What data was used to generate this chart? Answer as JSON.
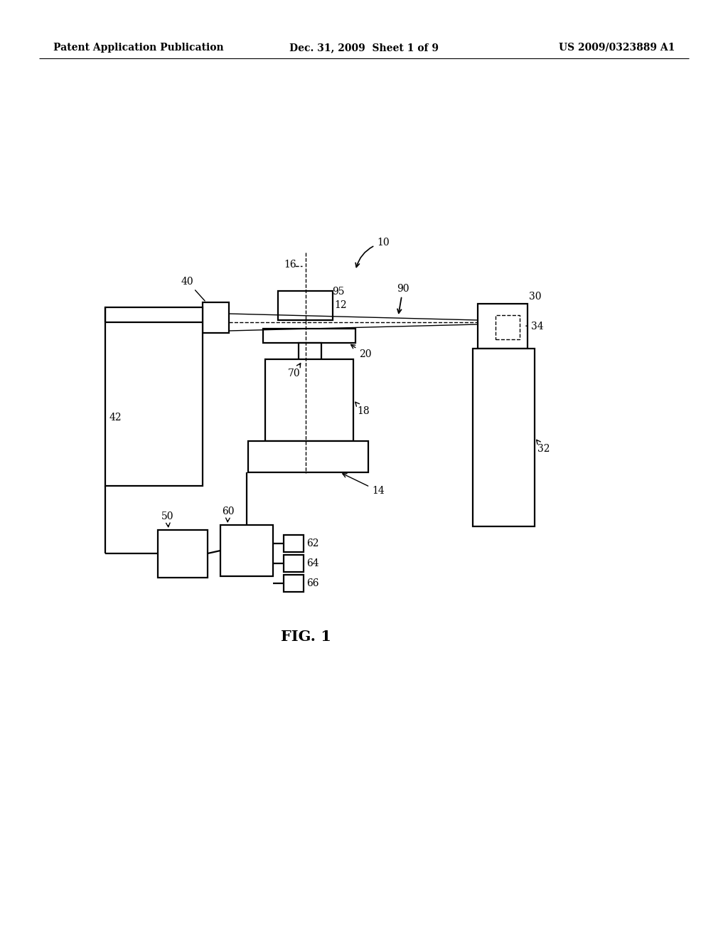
{
  "background_color": "#ffffff",
  "header_left": "Patent Application Publication",
  "header_mid": "Dec. 31, 2009  Sheet 1 of 9",
  "header_right": "US 2009/0323889 A1",
  "figure_caption": "FIG. 1",
  "lw": 1.6,
  "lw_thin": 1.0,
  "fs_label": 10,
  "fs_header": 10,
  "fs_caption": 15
}
